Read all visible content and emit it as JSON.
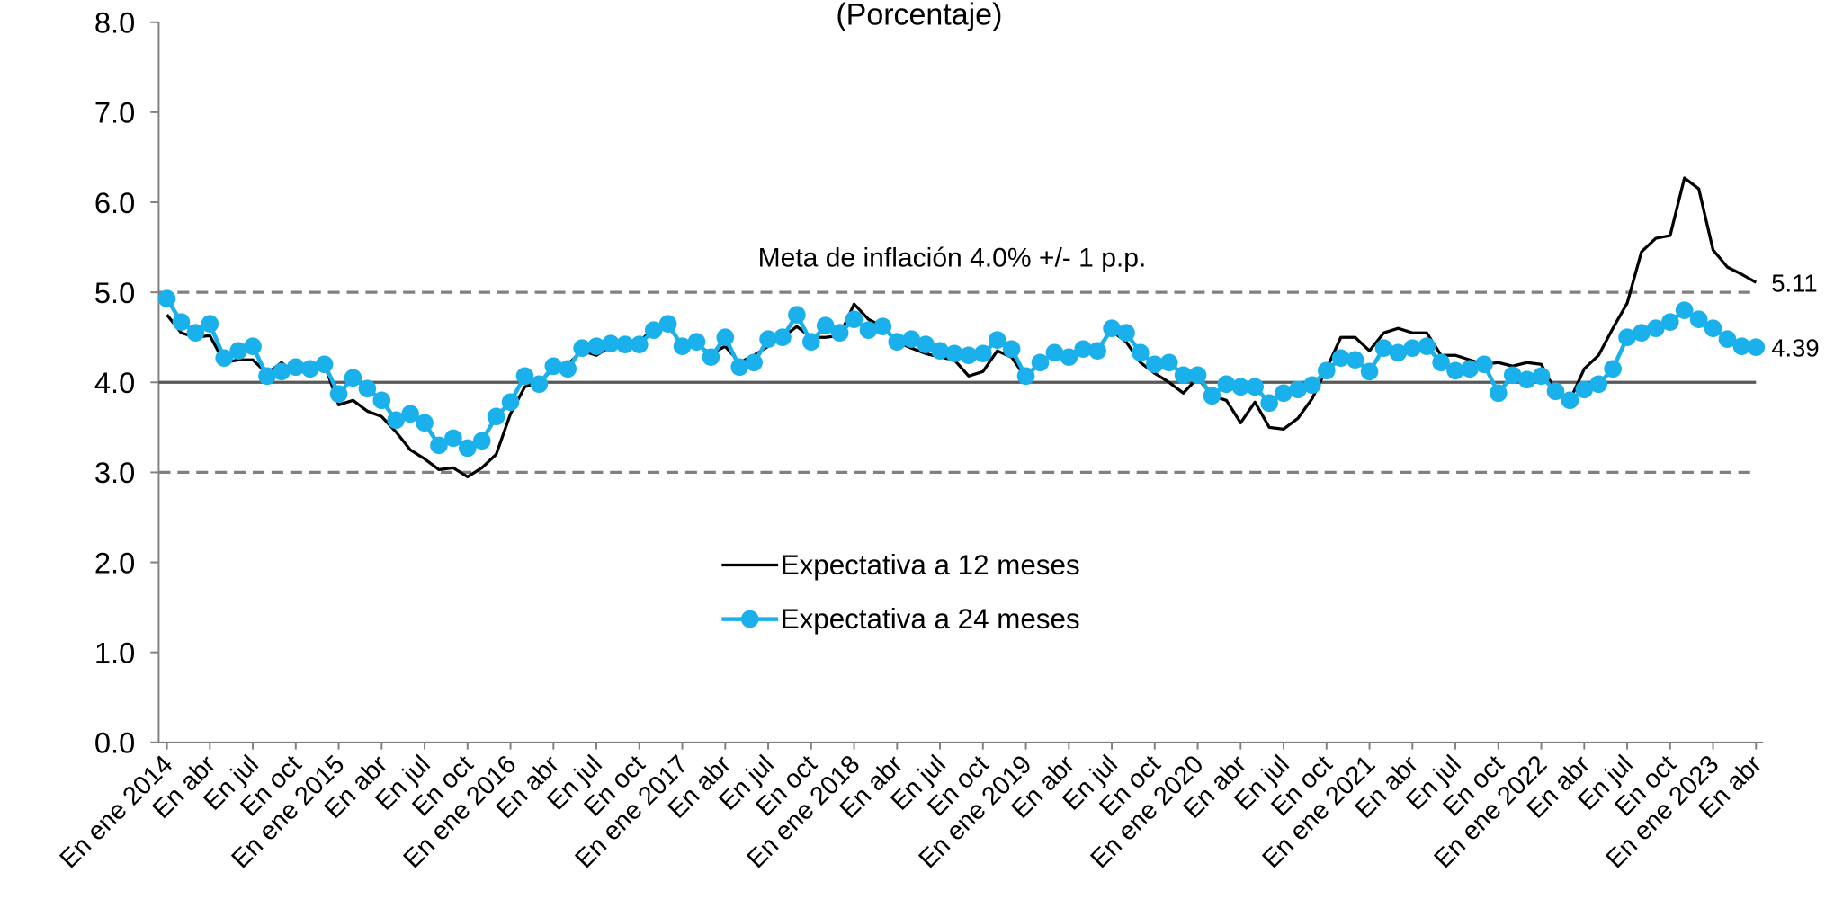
{
  "chart_data": {
    "type": "line",
    "title": "(Porcentaje)",
    "annotation": "Meta de inflación 4.0% +/- 1 p.p.",
    "categories": [
      "En ene 2014",
      null,
      null,
      "En abr",
      null,
      null,
      "En jul",
      null,
      null,
      "En oct",
      null,
      null,
      "En ene 2015",
      null,
      null,
      "En abr",
      null,
      null,
      "En jul",
      null,
      null,
      "En oct",
      null,
      null,
      "En ene 2016",
      null,
      null,
      "En abr",
      null,
      null,
      "En jul",
      null,
      null,
      "En oct",
      null,
      null,
      "En ene 2017",
      null,
      null,
      "En abr",
      null,
      null,
      "En jul",
      null,
      null,
      "En oct",
      null,
      null,
      "En ene 2018",
      null,
      null,
      "En abr",
      null,
      null,
      "En jul",
      null,
      null,
      "En oct",
      null,
      null,
      "En ene 2019",
      null,
      null,
      "En abr",
      null,
      null,
      "En jul",
      null,
      null,
      "En oct",
      null,
      null,
      "En ene 2020",
      null,
      null,
      "En abr",
      null,
      null,
      "En jul",
      null,
      null,
      "En oct",
      null,
      null,
      "En ene 2021",
      null,
      null,
      "En abr",
      null,
      null,
      "En jul",
      null,
      null,
      "En oct",
      null,
      null,
      "En ene 2022",
      null,
      null,
      "En abr",
      null,
      null,
      "En jul",
      null,
      null,
      "En oct",
      null,
      null,
      "En ene 2023",
      null,
      null,
      "En abr"
    ],
    "series": [
      {
        "name": "Expectativa a 12 meses",
        "color": "#000000",
        "marker": false,
        "values": [
          4.75,
          4.55,
          4.5,
          4.52,
          4.22,
          4.25,
          4.25,
          4.1,
          4.22,
          4.1,
          4.15,
          4.2,
          3.75,
          3.8,
          3.68,
          3.62,
          3.45,
          3.25,
          3.15,
          3.03,
          3.05,
          2.95,
          3.05,
          3.2,
          3.65,
          3.95,
          4.0,
          4.15,
          4.2,
          4.35,
          4.3,
          4.4,
          4.4,
          4.45,
          4.6,
          4.62,
          4.42,
          4.42,
          4.32,
          4.4,
          4.22,
          4.3,
          4.4,
          4.5,
          4.62,
          4.5,
          4.5,
          4.52,
          4.87,
          4.7,
          4.62,
          4.45,
          4.38,
          4.32,
          4.28,
          4.25,
          4.07,
          4.12,
          4.35,
          4.28,
          4.05,
          4.22,
          4.32,
          4.32,
          4.38,
          4.38,
          4.57,
          4.45,
          4.22,
          4.1,
          4.0,
          3.88,
          4.05,
          3.85,
          3.8,
          3.55,
          3.78,
          3.5,
          3.48,
          3.6,
          3.82,
          4.15,
          4.5,
          4.5,
          4.35,
          4.55,
          4.6,
          4.55,
          4.55,
          4.3,
          4.3,
          4.25,
          4.2,
          4.22,
          4.18,
          4.22,
          4.2,
          3.9,
          3.8,
          4.15,
          4.3,
          4.6,
          4.88,
          5.45,
          5.6,
          5.63,
          6.27,
          6.15,
          5.47,
          5.28,
          5.2,
          5.11
        ]
      },
      {
        "name": "Expectativa a 24 meses",
        "color": "#19b0eb",
        "marker": true,
        "values": [
          4.93,
          4.67,
          4.55,
          4.65,
          4.27,
          4.35,
          4.4,
          4.07,
          4.12,
          4.17,
          4.15,
          4.2,
          3.87,
          4.05,
          3.93,
          3.8,
          3.58,
          3.65,
          3.55,
          3.3,
          3.38,
          3.27,
          3.35,
          3.62,
          3.78,
          4.07,
          3.98,
          4.18,
          4.15,
          4.38,
          4.4,
          4.43,
          4.42,
          4.42,
          4.58,
          4.65,
          4.4,
          4.45,
          4.28,
          4.5,
          4.17,
          4.22,
          4.48,
          4.5,
          4.75,
          4.45,
          4.63,
          4.55,
          4.7,
          4.58,
          4.62,
          4.45,
          4.48,
          4.42,
          4.35,
          4.32,
          4.3,
          4.32,
          4.47,
          4.37,
          4.07,
          4.22,
          4.33,
          4.28,
          4.37,
          4.35,
          4.6,
          4.55,
          4.33,
          4.2,
          4.22,
          4.08,
          4.08,
          3.85,
          3.98,
          3.95,
          3.95,
          3.77,
          3.88,
          3.92,
          3.97,
          4.13,
          4.27,
          4.25,
          4.12,
          4.38,
          4.33,
          4.38,
          4.4,
          4.22,
          4.13,
          4.15,
          4.2,
          3.88,
          4.08,
          4.03,
          4.07,
          3.9,
          3.8,
          3.92,
          3.98,
          4.15,
          4.5,
          4.55,
          4.6,
          4.67,
          4.8,
          4.7,
          4.6,
          4.48,
          4.4,
          4.39
        ]
      }
    ],
    "reference_lines": [
      {
        "value": 5,
        "style": "dashed",
        "color": "#808080"
      },
      {
        "value": 4,
        "style": "solid",
        "color": "#595959"
      },
      {
        "value": 3,
        "style": "dashed",
        "color": "#808080"
      }
    ],
    "ylim": [
      0,
      8
    ],
    "yticks": [
      {
        "value": 0,
        "label": "0.0"
      },
      {
        "value": 1,
        "label": "1.0"
      },
      {
        "value": 2,
        "label": "2.0"
      },
      {
        "value": 3,
        "label": "3.0"
      },
      {
        "value": 4,
        "label": "4.0"
      },
      {
        "value": 5,
        "label": "5.0"
      },
      {
        "value": 6,
        "label": "6.0"
      },
      {
        "value": 7,
        "label": "7.0"
      },
      {
        "value": 8,
        "label": "8.0"
      }
    ],
    "grid": false,
    "legend": "center"
  }
}
